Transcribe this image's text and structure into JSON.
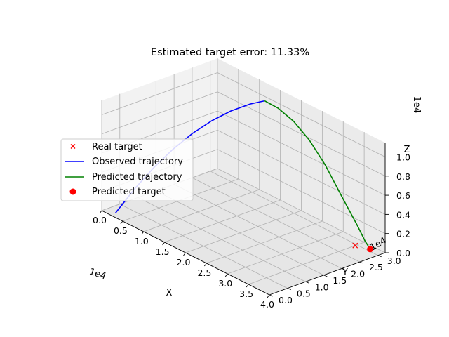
{
  "chart_data": {
    "type": "line",
    "projection": "3d",
    "title": "Estimated target error: 11.33%",
    "xlabel": "X",
    "ylabel": "Y",
    "zlabel": "Z",
    "x_ticks": [
      "0.0",
      "0.5",
      "1.0",
      "1.5",
      "2.0",
      "2.5",
      "3.0",
      "3.5",
      "4.0"
    ],
    "y_ticks": [
      "0.0",
      "0.5",
      "1.0",
      "1.5",
      "2.0",
      "2.5",
      "3.0"
    ],
    "z_ticks": [
      "0.0",
      "0.2",
      "0.4",
      "0.6",
      "0.8",
      "1.0"
    ],
    "x_multiplier": "1e4",
    "y_multiplier": "1e4",
    "z_multiplier": "1e4",
    "xlim": [
      0,
      40000
    ],
    "ylim": [
      0,
      32000
    ],
    "zlim": [
      0,
      11500
    ],
    "grid": true,
    "legend_position": "left",
    "legend": [
      "Real target",
      "Observed trajectory",
      "Predicted trajectory",
      "Predicted target"
    ],
    "series": [
      {
        "name": "Observed trajectory",
        "color": "#0000ff",
        "points": [
          [
            2000,
            1500,
            0
          ],
          [
            4000,
            4500,
            2550
          ],
          [
            6000,
            7500,
            4800
          ],
          [
            8000,
            10500,
            6750
          ],
          [
            10000,
            13500,
            8400
          ],
          [
            12000,
            16500,
            9750
          ],
          [
            14000,
            19500,
            10800
          ],
          [
            16000,
            22500,
            11550
          ],
          [
            17500,
            24750,
            11900
          ]
        ]
      },
      {
        "name": "Predicted trajectory",
        "color": "#008000",
        "points": [
          [
            17500,
            24750,
            11900
          ],
          [
            20000,
            25500,
            11600
          ],
          [
            23000,
            26400,
            10750
          ],
          [
            26000,
            27300,
            9300
          ],
          [
            29000,
            28200,
            7250
          ],
          [
            32000,
            29100,
            4650
          ],
          [
            35000,
            30000,
            2100
          ],
          [
            36500,
            30450,
            700
          ],
          [
            37500,
            30750,
            0
          ]
        ]
      }
    ],
    "markers": [
      {
        "name": "Real target",
        "marker": "x",
        "color": "#ff0000",
        "point": [
          35000,
          29500,
          0
        ]
      },
      {
        "name": "Predicted target",
        "marker": "o",
        "color": "#ff0000",
        "point": [
          37500,
          30750,
          0
        ]
      }
    ]
  }
}
